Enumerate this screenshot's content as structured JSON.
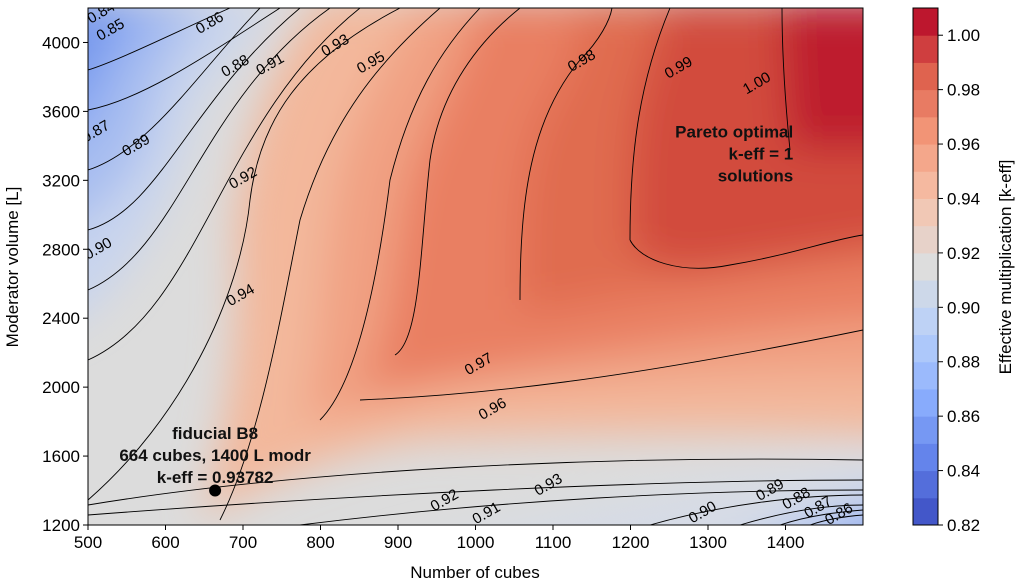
{
  "chart_data": {
    "type": "heatmap",
    "subtype": "filled-contour",
    "title": "",
    "xlabel": "Number of cubes",
    "ylabel": "Moderator volume [L]",
    "xlim": [
      500,
      1500
    ],
    "ylim": [
      1200,
      4200
    ],
    "xticks": [
      "500",
      "600",
      "700",
      "800",
      "900",
      "1000",
      "1100",
      "1200",
      "1300",
      "1400"
    ],
    "yticks": [
      "1200",
      "1600",
      "2000",
      "2400",
      "2800",
      "3200",
      "3600",
      "4000"
    ],
    "colorbar": {
      "label": "Effective multiplication [k-eff]",
      "range": [
        0.82,
        1.01
      ],
      "ticks": [
        "0.82",
        "0.84",
        "0.86",
        "0.88",
        "0.90",
        "0.92",
        "0.94",
        "0.96",
        "0.98",
        "1.00"
      ],
      "colormap": "coolwarm",
      "low_color": "#3b4cc0",
      "mid_color": "#dddddd",
      "high_color": "#b40426"
    },
    "contour_levels": [
      "0.84",
      "0.85",
      "0.86",
      "0.87",
      "0.88",
      "0.89",
      "0.90",
      "0.91",
      "0.92",
      "0.93",
      "0.94",
      "0.95",
      "0.96",
      "0.97",
      "0.98",
      "0.99",
      "1.00"
    ],
    "contour_labels": [
      {
        "text": "0.84",
        "x": 520,
        "y": 4150
      },
      {
        "text": "0.85",
        "x": 532,
        "y": 4050
      },
      {
        "text": "0.86",
        "x": 660,
        "y": 4090
      },
      {
        "text": "0.87",
        "x": 513,
        "y": 3460
      },
      {
        "text": "0.88",
        "x": 693,
        "y": 3840
      },
      {
        "text": "0.89",
        "x": 565,
        "y": 3380
      },
      {
        "text": "0.90",
        "x": 516,
        "y": 2780
      },
      {
        "text": "0.91",
        "x": 738,
        "y": 3850
      },
      {
        "text": "0.92",
        "x": 703,
        "y": 3190
      },
      {
        "text": "0.93",
        "x": 822,
        "y": 3960
      },
      {
        "text": "0.94",
        "x": 700,
        "y": 2510
      },
      {
        "text": "0.95",
        "x": 868,
        "y": 3860
      },
      {
        "text": "0.96",
        "x": 1025,
        "y": 1850
      },
      {
        "text": "0.97",
        "x": 1007,
        "y": 2110
      },
      {
        "text": "0.98",
        "x": 1140,
        "y": 3870
      },
      {
        "text": "0.99",
        "x": 1265,
        "y": 3830
      },
      {
        "text": "1.00",
        "x": 1366,
        "y": 3740
      },
      {
        "text": "0.93",
        "x": 1097,
        "y": 1410
      },
      {
        "text": "0.92",
        "x": 963,
        "y": 1320
      },
      {
        "text": "0.91",
        "x": 1017,
        "y": 1245
      },
      {
        "text": "0.90",
        "x": 1296,
        "y": 1250
      },
      {
        "text": "0.89",
        "x": 1383,
        "y": 1380
      },
      {
        "text": "0.88",
        "x": 1417,
        "y": 1330
      },
      {
        "text": "0.87",
        "x": 1445,
        "y": 1280
      },
      {
        "text": "0.86",
        "x": 1472,
        "y": 1240
      }
    ],
    "annotations": [
      {
        "lines": [
          "Pareto optimal",
          "k-eff = 1",
          "solutions"
        ],
        "x": 1410,
        "y": 3450,
        "align": "right"
      },
      {
        "lines": [
          "fiducial B8",
          "664 cubes, 1400 L modr",
          "k-eff = 0.93782"
        ],
        "x": 664,
        "y": 1700,
        "align": "center"
      }
    ],
    "points": [
      {
        "name": "fiducial B8",
        "x": 664,
        "y": 1400,
        "keff": 0.93782
      }
    ]
  }
}
